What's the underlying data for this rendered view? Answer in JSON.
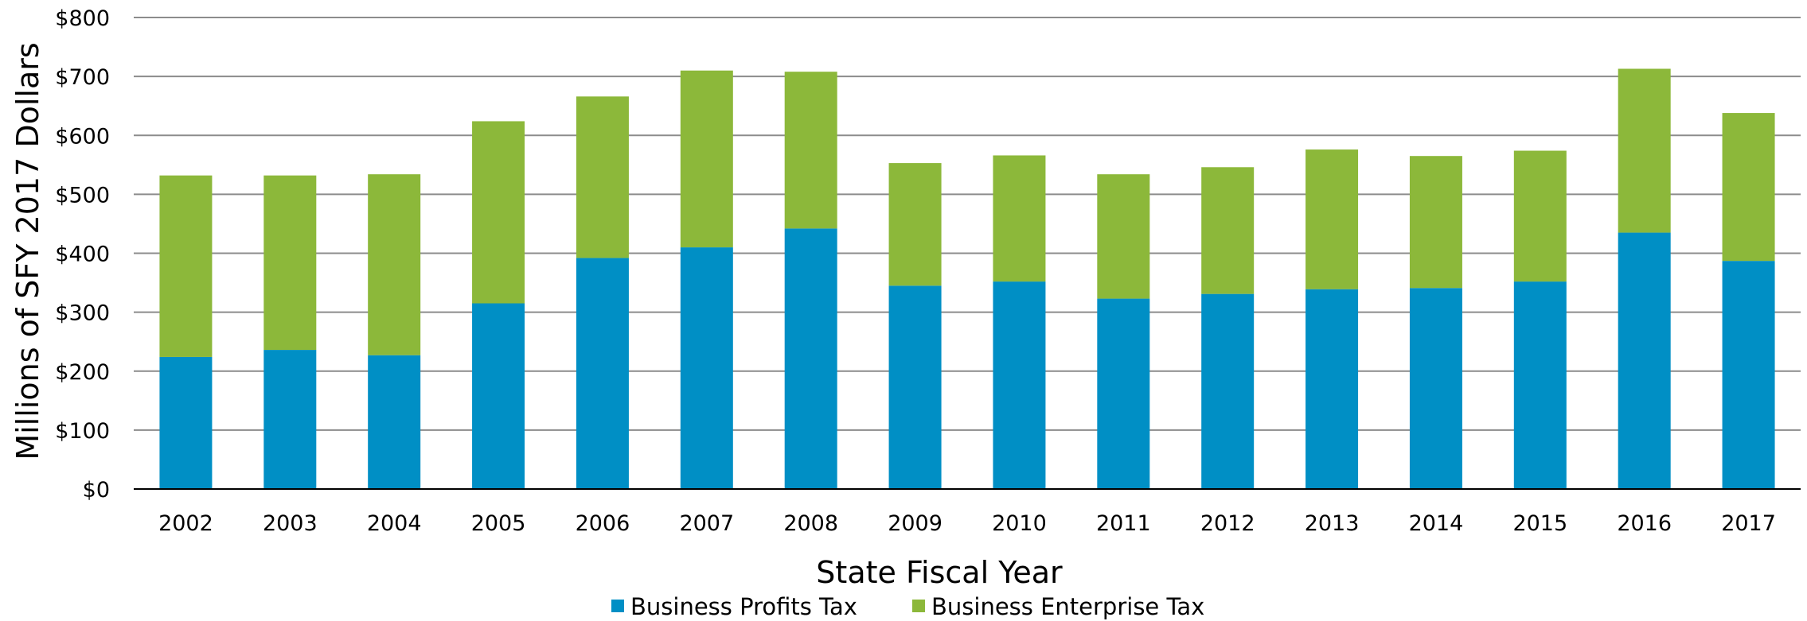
{
  "chart_data": {
    "type": "bar",
    "stacked": true,
    "title": "",
    "xlabel": "State Fiscal Year",
    "ylabel": "Millions of SFY 2017 Dollars",
    "ylim": [
      0,
      800
    ],
    "y_ticks": [
      0,
      100,
      200,
      300,
      400,
      500,
      600,
      700,
      800
    ],
    "y_tick_labels": [
      "$0",
      "$100",
      "$200",
      "$300",
      "$400",
      "$500",
      "$600",
      "$700",
      "$800"
    ],
    "grid": true,
    "legend_position": "bottom",
    "categories": [
      "2002",
      "2003",
      "2004",
      "2005",
      "2006",
      "2007",
      "2008",
      "2009",
      "2010",
      "2011",
      "2012",
      "2013",
      "2014",
      "2015",
      "2016",
      "2017"
    ],
    "series": [
      {
        "name": "Business Profits Tax",
        "color": "#008FC5",
        "values": [
          224,
          236,
          227,
          315,
          392,
          410,
          442,
          345,
          352,
          323,
          331,
          339,
          341,
          352,
          435,
          387
        ]
      },
      {
        "name": "Business Enterprise Tax",
        "color": "#8CB83A",
        "values": [
          308,
          296,
          307,
          309,
          274,
          300,
          266,
          208,
          214,
          211,
          215,
          237,
          224,
          222,
          278,
          251
        ]
      }
    ]
  }
}
